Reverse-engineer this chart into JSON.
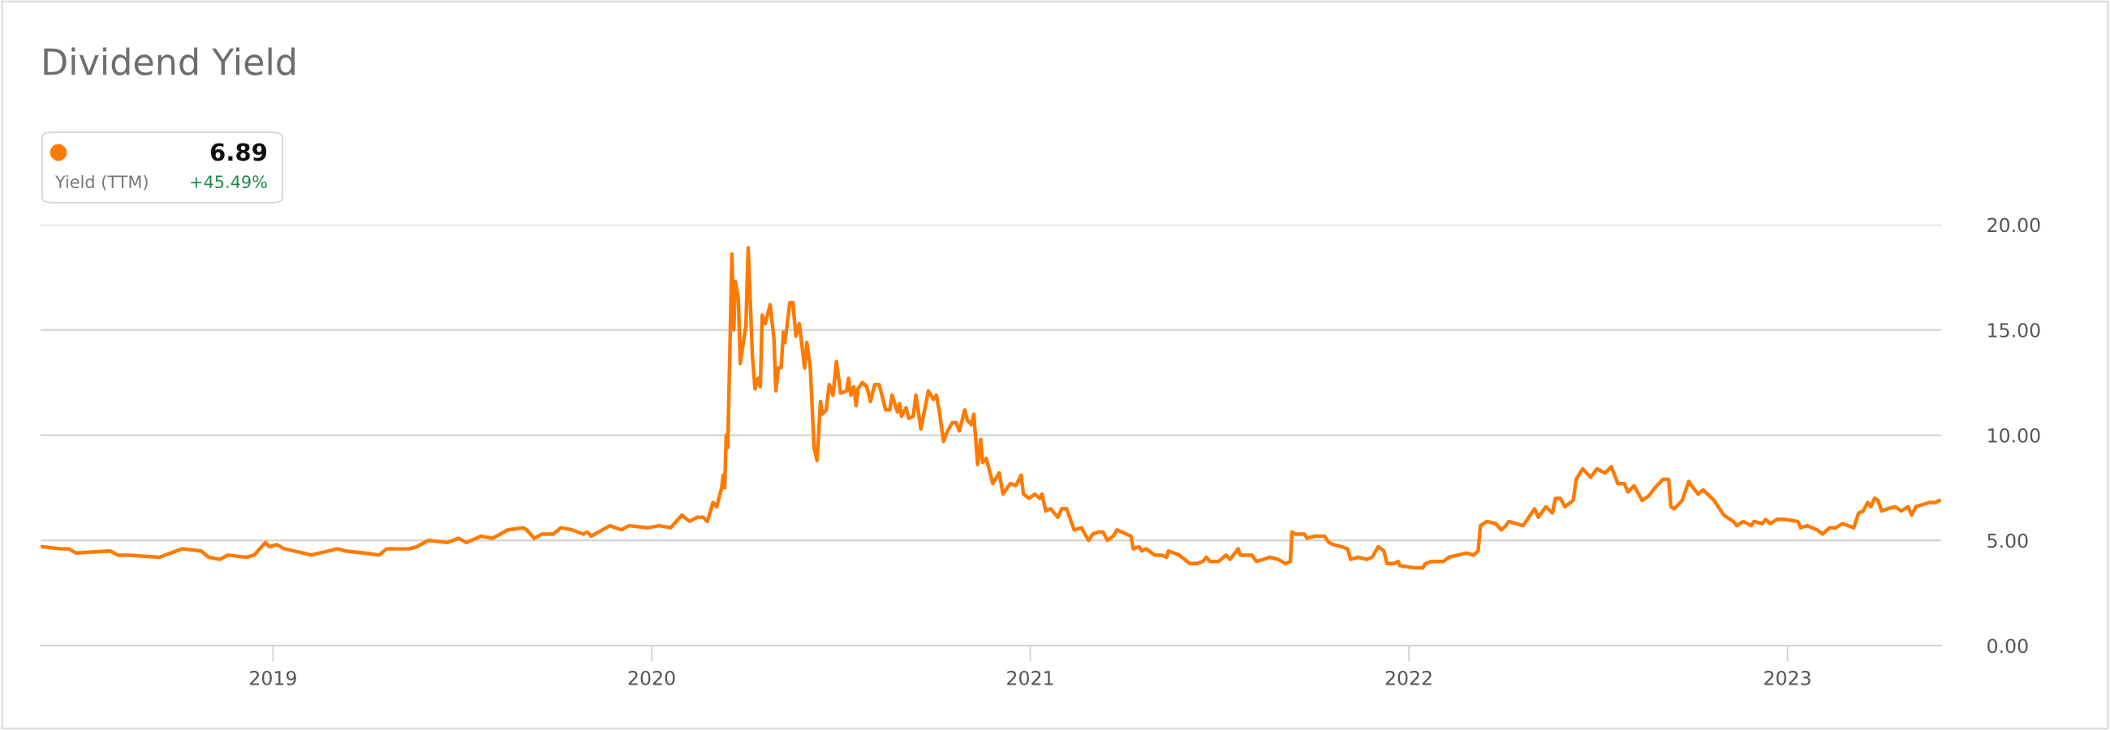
{
  "chart_data": {
    "type": "line",
    "title": "Dividend Yield",
    "annotations": [
      "6.89",
      "Yield (TTM)",
      "+45.49%"
    ],
    "xlim": [
      2018.386,
      2023.406
    ],
    "xticks": [
      2019,
      2020,
      2021,
      2022,
      2023
    ],
    "ylim": [
      0,
      20
    ],
    "yticks": [
      {
        "value": 0,
        "label": "0.00"
      },
      {
        "value": 5,
        "label": "5.00"
      },
      {
        "value": 10,
        "label": "10.00"
      },
      {
        "value": 15,
        "label": "15.00"
      },
      {
        "value": 20,
        "label": "20.00"
      }
    ],
    "grid": "y",
    "legend": false,
    "marker": "none",
    "line_style": "solid",
    "series": [
      {
        "color": "#ff7a00",
        "x": [
          2018.39,
          2018.44,
          2018.46,
          2018.48,
          2018.57,
          2018.59,
          2018.62,
          2018.7,
          2018.76,
          2018.81,
          2018.83,
          2018.86,
          2018.88,
          2018.93,
          2018.95,
          2018.98,
          2018.99,
          2019.01,
          2019.03,
          2019.08,
          2019.1,
          2019.17,
          2019.19,
          2019.24,
          2019.28,
          2019.3,
          2019.36,
          2019.38,
          2019.41,
          2019.46,
          2019.49,
          2019.51,
          2019.55,
          2019.58,
          2019.6,
          2019.62,
          2019.66,
          2019.67,
          2019.69,
          2019.71,
          2019.74,
          2019.76,
          2019.79,
          2019.82,
          2019.83,
          2019.84,
          2019.89,
          2019.92,
          2019.94,
          2019.99,
          2020.02,
          2020.05,
          2020.08,
          2020.1,
          2020.12,
          2020.136,
          2020.147,
          2020.162,
          2020.172,
          2020.185,
          2020.189,
          2020.193,
          2020.197,
          2020.201,
          2020.212,
          2020.217,
          2020.221,
          2020.229,
          2020.234,
          2020.243,
          2020.249,
          2020.255,
          2020.266,
          2020.273,
          2020.281,
          2020.287,
          2020.292,
          2020.3,
          2020.313,
          2020.323,
          2020.328,
          2020.335,
          2020.342,
          2020.348,
          2020.352,
          2020.365,
          2020.373,
          2020.381,
          2020.39,
          2020.404,
          2020.41,
          2020.419,
          2020.424,
          2020.429,
          2020.437,
          2020.446,
          2020.451,
          2020.461,
          2020.469,
          2020.479,
          2020.488,
          2020.499,
          2020.515,
          2020.52,
          2020.526,
          2020.534,
          2020.54,
          2020.545,
          2020.557,
          2020.568,
          2020.578,
          2020.589,
          2020.601,
          2020.618,
          2020.629,
          2020.635,
          2020.649,
          2020.655,
          2020.66,
          2020.672,
          2020.679,
          2020.691,
          2020.698,
          2020.711,
          2020.731,
          2020.744,
          2020.752,
          2020.76,
          2020.771,
          2020.779,
          2020.794,
          2020.804,
          2020.813,
          2020.827,
          2020.834,
          2020.844,
          2020.851,
          2020.861,
          2020.869,
          2020.874,
          2020.884,
          2020.901,
          2020.918,
          2020.928,
          2020.947,
          2020.962,
          2020.976,
          2020.982,
          2020.997,
          2021.012,
          2021.025,
          2021.031,
          2021.041,
          2021.054,
          2021.073,
          2021.083,
          2021.096,
          2021.116,
          2021.135,
          2021.154,
          2021.165,
          2021.181,
          2021.192,
          2021.204,
          2021.219,
          2021.229,
          2021.266,
          2021.272,
          2021.287,
          2021.295,
          2021.306,
          2021.329,
          2021.348,
          2021.36,
          2021.365,
          2021.394,
          2021.421,
          2021.44,
          2021.456,
          2021.465,
          2021.475,
          2021.498,
          2021.517,
          2021.528,
          2021.549,
          2021.555,
          2021.586,
          2021.597,
          2021.616,
          2021.632,
          2021.655,
          2021.674,
          2021.687,
          2021.691,
          2021.7,
          2021.724,
          2021.731,
          2021.75,
          2021.777,
          2021.789,
          2021.8,
          2021.823,
          2021.838,
          2021.846,
          2021.865,
          2021.888,
          2021.903,
          2021.919,
          2021.934,
          2021.942,
          2021.961,
          2021.972,
          2021.976,
          2022.014,
          2022.037,
          2022.044,
          2022.06,
          2022.091,
          2022.106,
          2022.129,
          2022.152,
          2022.171,
          2022.183,
          2022.189,
          2022.206,
          2022.229,
          2022.244,
          2022.256,
          2022.264,
          2022.302,
          2022.332,
          2022.342,
          2022.362,
          2022.379,
          2022.387,
          2022.4,
          2022.412,
          2022.434,
          2022.442,
          2022.459,
          2022.48,
          2022.497,
          2022.518,
          2022.535,
          2022.552,
          2022.569,
          2022.579,
          2022.595,
          2022.616,
          2022.633,
          2022.65,
          2022.671,
          2022.686,
          2022.692,
          2022.701,
          2022.722,
          2022.739,
          2022.751,
          2022.764,
          2022.777,
          2022.806,
          2022.832,
          2022.857,
          2022.866,
          2022.883,
          2022.904,
          2022.912,
          2022.934,
          2022.942,
          2022.955,
          2022.972,
          2022.993,
          2023.027,
          2023.035,
          2023.052,
          2023.078,
          2023.093,
          2023.111,
          2023.128,
          2023.145,
          2023.175,
          2023.188,
          2023.2,
          2023.212,
          2023.22,
          2023.23,
          2023.239,
          2023.249,
          2023.264,
          2023.285,
          2023.3,
          2023.319,
          2023.328,
          2023.339,
          2023.357,
          2023.374,
          2023.391,
          2023.401
        ],
        "values": [
          4.7,
          4.6,
          4.6,
          4.4,
          4.5,
          4.3,
          4.3,
          4.2,
          4.6,
          4.5,
          4.2,
          4.1,
          4.3,
          4.2,
          4.3,
          4.9,
          4.7,
          4.8,
          4.6,
          4.4,
          4.3,
          4.6,
          4.5,
          4.4,
          4.3,
          4.6,
          4.6,
          4.7,
          5.0,
          4.9,
          5.1,
          4.9,
          5.2,
          5.1,
          5.3,
          5.5,
          5.6,
          5.5,
          5.1,
          5.3,
          5.3,
          5.6,
          5.5,
          5.3,
          5.4,
          5.2,
          5.7,
          5.5,
          5.7,
          5.6,
          5.7,
          5.6,
          6.2,
          5.9,
          6.1,
          6.1,
          5.9,
          6.8,
          6.6,
          7.5,
          8.1,
          7.5,
          10.0,
          9.4,
          18.6,
          15.0,
          17.3,
          16.5,
          13.4,
          14.5,
          15.2,
          18.9,
          13.8,
          12.2,
          12.7,
          12.3,
          15.7,
          15.3,
          16.2,
          14.6,
          12.1,
          13.2,
          13.2,
          14.9,
          14.4,
          16.3,
          16.3,
          14.7,
          15.3,
          13.2,
          14.4,
          13.2,
          11.3,
          9.4,
          8.8,
          11.6,
          11.0,
          11.2,
          12.4,
          11.9,
          13.5,
          12.0,
          12.1,
          12.7,
          11.9,
          12.3,
          11.4,
          12.2,
          12.5,
          12.3,
          11.6,
          12.4,
          12.4,
          11.2,
          11.2,
          11.9,
          11.1,
          11.5,
          10.9,
          11.3,
          10.8,
          10.9,
          11.9,
          10.3,
          12.1,
          11.7,
          11.9,
          11.1,
          9.7,
          10.1,
          10.6,
          10.6,
          10.2,
          11.2,
          10.7,
          10.5,
          11.0,
          8.6,
          9.8,
          8.7,
          8.9,
          7.7,
          8.2,
          7.2,
          7.7,
          7.6,
          8.1,
          7.2,
          7.0,
          7.2,
          7.0,
          7.2,
          6.4,
          6.5,
          6.1,
          6.5,
          6.5,
          5.5,
          5.6,
          5.0,
          5.3,
          5.4,
          5.4,
          5.0,
          5.2,
          5.5,
          5.2,
          4.6,
          4.7,
          4.5,
          4.6,
          4.3,
          4.3,
          4.2,
          4.5,
          4.3,
          3.9,
          3.9,
          4.0,
          4.2,
          4.0,
          4.0,
          4.3,
          4.1,
          4.6,
          4.3,
          4.3,
          4.0,
          4.1,
          4.2,
          4.1,
          3.9,
          4.0,
          5.4,
          5.3,
          5.3,
          5.1,
          5.2,
          5.2,
          4.9,
          4.8,
          4.7,
          4.6,
          4.1,
          4.2,
          4.1,
          4.2,
          4.7,
          4.5,
          3.9,
          3.9,
          4.0,
          3.8,
          3.7,
          3.7,
          3.9,
          4.0,
          4.0,
          4.2,
          4.3,
          4.4,
          4.3,
          4.5,
          5.7,
          5.9,
          5.8,
          5.5,
          5.7,
          5.9,
          5.7,
          6.5,
          6.1,
          6.6,
          6.3,
          7.0,
          7.0,
          6.6,
          6.9,
          7.9,
          8.4,
          8.0,
          8.4,
          8.2,
          8.5,
          7.7,
          7.7,
          7.3,
          7.6,
          6.9,
          7.1,
          7.5,
          7.9,
          7.9,
          6.6,
          6.5,
          6.9,
          7.8,
          7.5,
          7.2,
          7.4,
          6.9,
          6.2,
          5.9,
          5.7,
          5.9,
          5.7,
          5.9,
          5.8,
          6.0,
          5.8,
          6.0,
          6.0,
          5.9,
          5.6,
          5.7,
          5.5,
          5.3,
          5.6,
          5.6,
          5.8,
          5.6,
          6.3,
          6.4,
          6.8,
          6.6,
          7.0,
          6.9,
          6.4,
          6.5,
          6.6,
          6.4,
          6.6,
          6.2,
          6.6,
          6.7,
          6.8,
          6.8,
          6.9
        ]
      }
    ]
  }
}
